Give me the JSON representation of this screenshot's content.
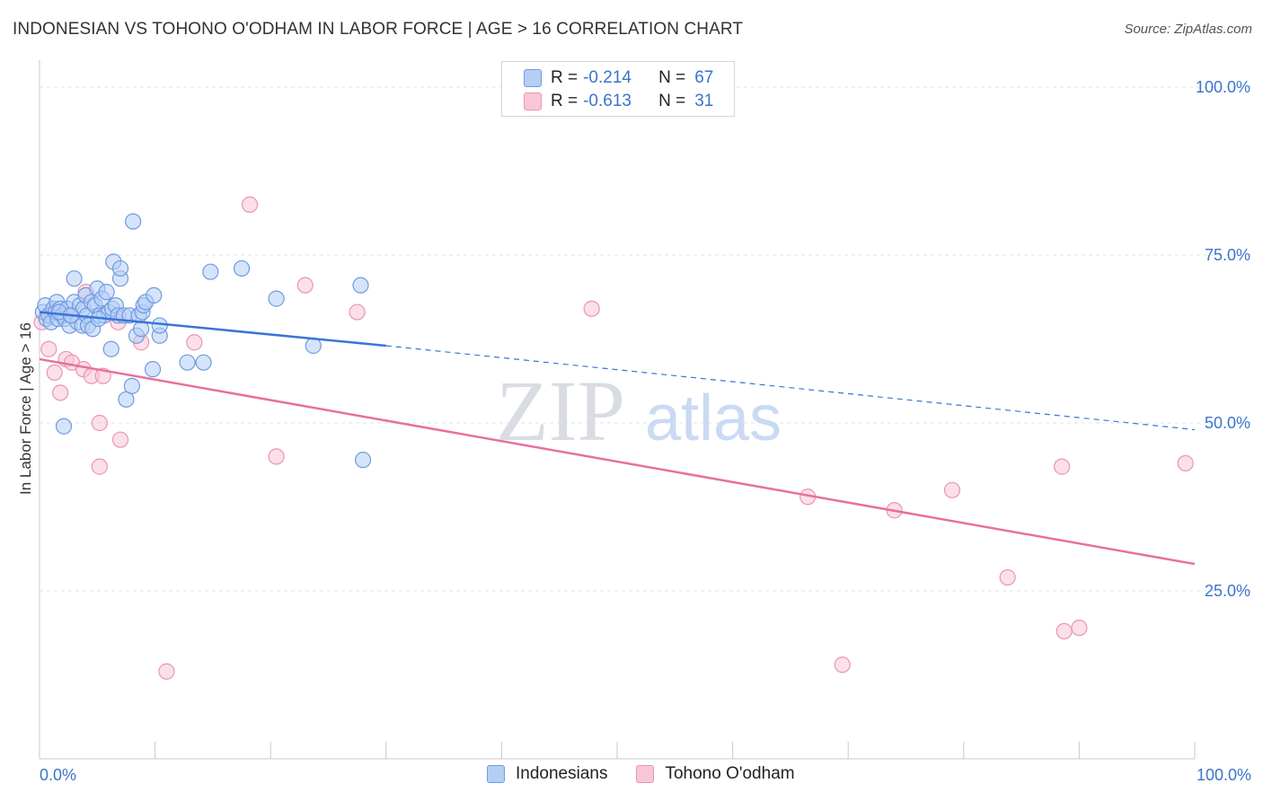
{
  "header": {
    "title": "INDONESIAN VS TOHONO O'ODHAM IN LABOR FORCE | AGE > 16 CORRELATION CHART",
    "source": "Source: ZipAtlas.com"
  },
  "legend_top": [
    {
      "r_label": "R =",
      "r_value": "-0.214",
      "n_label": "N =",
      "n_value": "67"
    },
    {
      "r_label": "R =",
      "r_value": "-0.613",
      "n_label": "N =",
      "n_value": "31"
    }
  ],
  "legend_bottom": [
    "Indonesians",
    "Tohono O'odham"
  ],
  "watermark": {
    "zip": "ZIP",
    "atlas": "atlas"
  },
  "colors": {
    "indonesians_fill": "#b5cef5",
    "indonesians_stroke": "#6f9be0",
    "indonesians_line": "#3b74d6",
    "tohono_fill": "#f8c6d6",
    "tohono_stroke": "#ec94b1",
    "tohono_line": "#e8709a",
    "tick_label": "#3b74c9",
    "grid": "#dde3ea"
  },
  "chart_data": {
    "type": "scatter",
    "ylabel": "In Labor Force | Age > 16",
    "xlim": [
      0,
      100
    ],
    "ylim": [
      0,
      100
    ],
    "x_tick_labels": [
      "0.0%",
      "100.0%"
    ],
    "y_ticks": [
      25,
      50,
      75,
      100
    ],
    "y_tick_labels": [
      "25.0%",
      "50.0%",
      "75.0%",
      "100.0%"
    ],
    "grid": "horizontal dashed",
    "series": [
      {
        "name": "Indonesians",
        "points": [
          [
            0.3,
            66.5
          ],
          [
            0.5,
            67.5
          ],
          [
            0.6,
            65.5
          ],
          [
            0.8,
            66
          ],
          [
            1.0,
            65
          ],
          [
            1.2,
            67
          ],
          [
            1.4,
            66.5
          ],
          [
            1.5,
            68
          ],
          [
            1.6,
            65.5
          ],
          [
            1.8,
            67
          ],
          [
            2.0,
            66
          ],
          [
            2.2,
            65.5
          ],
          [
            2.4,
            67
          ],
          [
            2.6,
            64.5
          ],
          [
            2.8,
            66
          ],
          [
            3.0,
            68
          ],
          [
            3.0,
            71.5
          ],
          [
            3.3,
            65
          ],
          [
            3.5,
            67.5
          ],
          [
            3.7,
            64.5
          ],
          [
            3.8,
            67
          ],
          [
            4.0,
            69
          ],
          [
            4.1,
            66
          ],
          [
            4.2,
            64.5
          ],
          [
            4.5,
            68
          ],
          [
            4.6,
            64
          ],
          [
            4.8,
            67.5
          ],
          [
            5.0,
            70
          ],
          [
            5.2,
            66
          ],
          [
            5.4,
            68.5
          ],
          [
            5.6,
            66
          ],
          [
            5.8,
            69.5
          ],
          [
            6.0,
            66.5
          ],
          [
            6.2,
            61
          ],
          [
            6.3,
            67
          ],
          [
            6.4,
            74
          ],
          [
            6.6,
            67.5
          ],
          [
            6.8,
            66
          ],
          [
            7.0,
            71.5
          ],
          [
            7.0,
            73
          ],
          [
            7.3,
            66
          ],
          [
            7.5,
            53.5
          ],
          [
            7.8,
            66
          ],
          [
            8.0,
            55.5
          ],
          [
            8.1,
            80
          ],
          [
            8.4,
            63
          ],
          [
            8.6,
            66
          ],
          [
            8.8,
            64
          ],
          [
            8.9,
            66.5
          ],
          [
            9.0,
            67.5
          ],
          [
            9.2,
            68
          ],
          [
            9.8,
            58
          ],
          [
            9.9,
            69
          ],
          [
            10.4,
            63
          ],
          [
            10.4,
            64.5
          ],
          [
            12.8,
            59
          ],
          [
            14.2,
            59
          ],
          [
            14.8,
            72.5
          ],
          [
            17.5,
            73
          ],
          [
            20.5,
            68.5
          ],
          [
            23.7,
            61.5
          ],
          [
            27.8,
            70.5
          ],
          [
            28.0,
            44.5
          ],
          [
            2.1,
            49.5
          ],
          [
            1.7,
            66.5
          ],
          [
            2.7,
            66
          ],
          [
            5.1,
            65.5
          ]
        ]
      },
      {
        "name": "Tohono O'odham",
        "points": [
          [
            0.2,
            65
          ],
          [
            0.8,
            61
          ],
          [
            1.3,
            57.5
          ],
          [
            1.8,
            54.5
          ],
          [
            2.3,
            59.5
          ],
          [
            2.8,
            59
          ],
          [
            3.8,
            58
          ],
          [
            4.0,
            69.5
          ],
          [
            4.5,
            57
          ],
          [
            5.2,
            50
          ],
          [
            5.5,
            57
          ],
          [
            5.2,
            43.5
          ],
          [
            6.8,
            65
          ],
          [
            7.0,
            47.5
          ],
          [
            8.8,
            62
          ],
          [
            11.0,
            13
          ],
          [
            13.4,
            62
          ],
          [
            18.2,
            82.5
          ],
          [
            20.5,
            45
          ],
          [
            23.0,
            70.5
          ],
          [
            27.5,
            66.5
          ],
          [
            47.8,
            67
          ],
          [
            66.5,
            39
          ],
          [
            69.5,
            14
          ],
          [
            74.0,
            37
          ],
          [
            79.0,
            40
          ],
          [
            83.8,
            27
          ],
          [
            88.5,
            43.5
          ],
          [
            88.7,
            19
          ],
          [
            90.0,
            19.5
          ],
          [
            99.2,
            44
          ]
        ]
      }
    ],
    "trend_lines": [
      {
        "series": "Indonesians",
        "solid_from": [
          0,
          66.5
        ],
        "solid_to": [
          30,
          61.5
        ],
        "dashed_to": [
          100,
          49
        ]
      },
      {
        "series": "Tohono O'odham",
        "from": [
          0,
          59.5
        ],
        "to": [
          100,
          29
        ]
      }
    ]
  }
}
